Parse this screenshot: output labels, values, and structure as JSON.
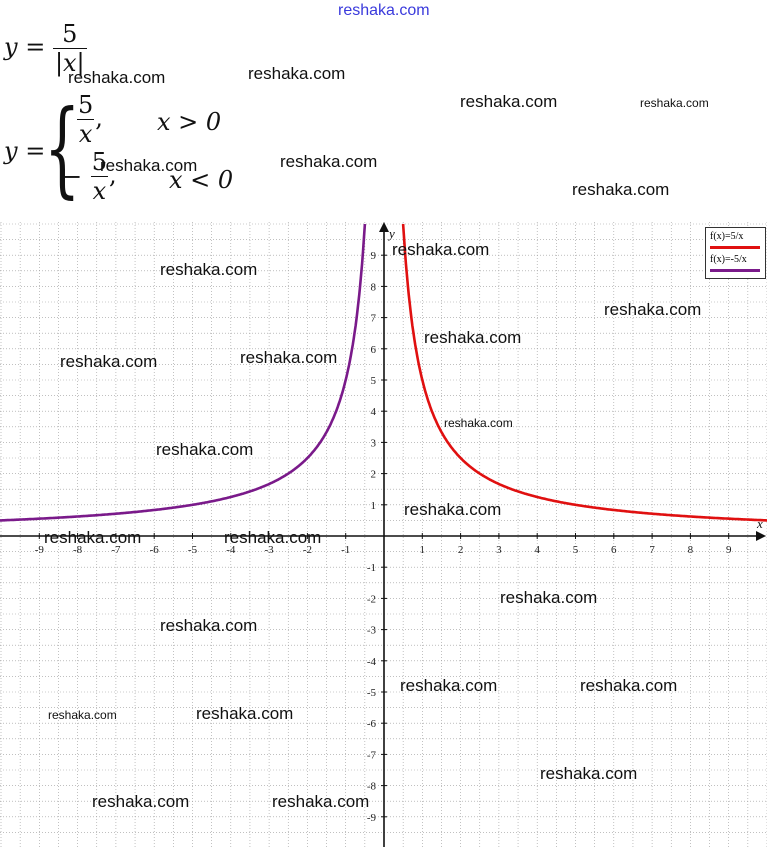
{
  "watermark_top": "reshaka.com",
  "formula1": {
    "lhs": "y =",
    "num": "5",
    "den": "|x|"
  },
  "formula2": {
    "lhs": "y =",
    "case1_num": "5",
    "case1_den": "x",
    "case1_cond": "x > 0",
    "case2_sign": "−",
    "case2_num": "5",
    "case2_den": "x",
    "case2_cond": "x < 0"
  },
  "watermark": "reshaka.com",
  "chart_data": {
    "type": "line",
    "xlim": [
      -10,
      10
    ],
    "ylim": [
      -10,
      10
    ],
    "grid": true,
    "legend_placement": "top-right",
    "axis_labels": {
      "x": "x",
      "y": "y"
    },
    "x_ticks": [
      -9,
      -8,
      -7,
      -6,
      -5,
      -4,
      -3,
      -2,
      -1,
      1,
      2,
      3,
      4,
      5,
      6,
      7,
      8,
      9
    ],
    "y_ticks": [
      -9,
      -8,
      -7,
      -6,
      -5,
      -4,
      -3,
      -2,
      -1,
      1,
      2,
      3,
      4,
      5,
      6,
      7,
      8,
      9
    ],
    "series": [
      {
        "name": "f(x)=5/x",
        "color": "#e01010",
        "x": [
          0.5,
          0.6,
          0.75,
          1,
          1.25,
          1.5,
          2,
          2.5,
          3,
          4,
          5,
          6,
          7,
          8,
          9,
          10
        ],
        "y": [
          10,
          8.33,
          6.67,
          5,
          4,
          3.33,
          2.5,
          2,
          1.67,
          1.25,
          1,
          0.83,
          0.71,
          0.63,
          0.56,
          0.5
        ]
      },
      {
        "name": "f(x)=-5/x",
        "color": "#7a1a8a",
        "x": [
          -10,
          -9,
          -8,
          -7,
          -6,
          -5,
          -4,
          -3,
          -2.5,
          -2,
          -1.5,
          -1.25,
          -1,
          -0.75,
          -0.6,
          -0.5
        ],
        "y": [
          0.5,
          0.56,
          0.63,
          0.71,
          0.83,
          1,
          1.25,
          1.67,
          2,
          2.5,
          3.33,
          4,
          5,
          6.67,
          8.33,
          10
        ]
      }
    ]
  }
}
